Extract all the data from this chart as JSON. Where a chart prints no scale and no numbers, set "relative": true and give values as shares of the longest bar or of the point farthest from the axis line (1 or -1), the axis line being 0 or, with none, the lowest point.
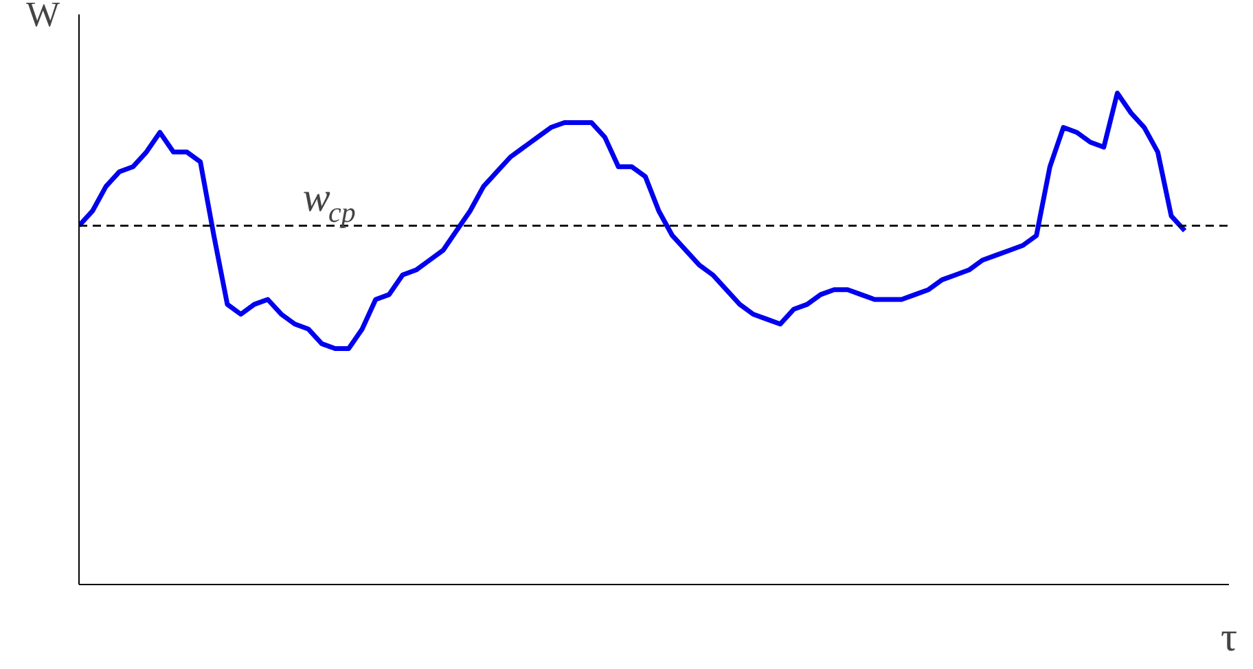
{
  "chart_data": {
    "type": "line",
    "relative": true,
    "ylabel": "W",
    "xlabel": "τ",
    "categories": [
      null,
      null,
      null,
      null,
      null,
      null,
      null,
      null,
      null,
      null,
      null,
      null,
      null,
      null,
      null,
      null,
      null,
      null,
      null,
      null,
      null,
      null,
      null,
      null,
      null,
      null,
      null,
      null,
      null,
      null,
      null,
      null,
      null,
      null,
      null,
      null,
      null,
      null,
      null,
      null,
      null,
      null,
      null,
      null,
      null,
      null,
      null,
      null,
      null,
      null,
      null,
      null,
      null,
      null,
      null,
      null,
      null,
      null,
      null,
      null,
      null,
      null,
      null,
      null,
      null,
      null,
      null,
      null,
      null,
      null,
      null,
      null,
      null,
      null,
      null,
      null,
      null,
      null,
      null,
      null,
      null,
      null,
      null
    ],
    "series": [
      {
        "color": "#0000ee",
        "values": [
          0.73,
          0.76,
          0.81,
          0.84,
          0.85,
          0.88,
          0.92,
          0.88,
          0.88,
          0.86,
          0.71,
          0.57,
          0.55,
          0.57,
          0.58,
          0.55,
          0.53,
          0.52,
          0.49,
          0.48,
          0.48,
          0.52,
          0.58,
          0.59,
          0.63,
          0.64,
          0.66,
          0.68,
          0.72,
          0.76,
          0.81,
          0.84,
          0.87,
          0.89,
          0.91,
          0.93,
          0.94,
          0.94,
          0.94,
          0.91,
          0.85,
          0.85,
          0.83,
          0.76,
          0.71,
          0.68,
          0.65,
          0.63,
          0.6,
          0.57,
          0.55,
          0.54,
          0.53,
          0.56,
          0.57,
          0.59,
          0.6,
          0.6,
          0.59,
          0.58,
          0.58,
          0.58,
          0.59,
          0.6,
          0.62,
          0.63,
          0.64,
          0.66,
          0.67,
          0.68,
          0.69,
          0.71,
          0.85,
          0.93,
          0.92,
          0.9,
          0.89,
          1.0,
          0.96,
          0.93,
          0.88,
          0.75,
          0.72
        ]
      }
    ],
    "ref_lines": [
      {
        "axis": "y",
        "value": 0.73,
        "label": "w$_{cp}$",
        "color": "#000000",
        "line_style": "dashed"
      }
    ],
    "grid": false,
    "marker": "none",
    "line_style": "solid"
  }
}
